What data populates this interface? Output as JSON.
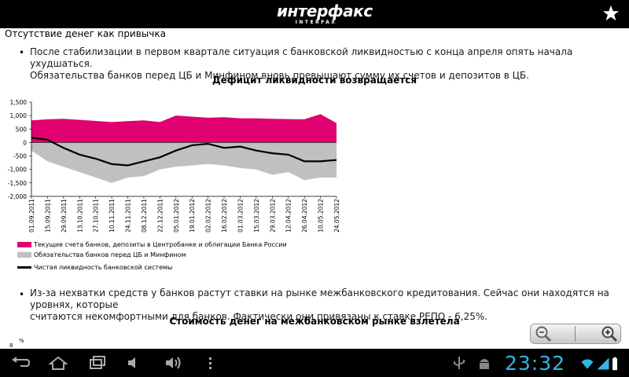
{
  "app": {
    "logo_text": "интерфакс",
    "logo_sub": "INTERFAX"
  },
  "article": {
    "section_title": "Отсутствие денег как привычка",
    "para1_line1": "После стабилизации в первом квартале ситуация с банковской ликвидностью с конца апреля опять начала ухудшаться.",
    "para1_line2": "Обязательства банков перед ЦБ и Минфином вновь превышают сумму их счетов и депозитов в ЦБ.",
    "chart1_title": "Дефицит ликвидности возвращается",
    "para2_line1": "Из-за нехватки средств у банков растут ставки на рынке межбанковского кредитования. Сейчас они находятся на уровнях, которые",
    "para2_line2": "считаются некомфортными для банков. Фактически они привязаны к ставке РЕПО - 6,25%.",
    "chart2_title": "Стоимость денег на межбанковском рынке взлетела",
    "chart2_ytick_top": "8",
    "chart2_yunit": "%"
  },
  "chart_data": {
    "type": "area",
    "yticks": [
      "1,500",
      "1,000",
      "500",
      "0",
      "-500",
      "-1,000",
      "-1,500",
      "-2,000"
    ],
    "ylim": [
      -2000,
      1500
    ],
    "categories": [
      "01.09.2011",
      "15.09.2011",
      "29.09.2011",
      "13.10.2011",
      "27.10.2011",
      "10.11.2011",
      "24.11.2011",
      "08.12.2011",
      "22.12.2011",
      "05.01.2012",
      "19.01.2012",
      "02.02.2012",
      "16.02.2012",
      "01.03.2012",
      "15.03.2012",
      "29.03.2012",
      "12.04.2012",
      "26.04.2012",
      "10.05.2012",
      "24.05.2012"
    ],
    "series": [
      {
        "name": "Текущие счета банков, депозиты в Центробанке и облигации Банка России",
        "color": "#e0006f",
        "values": [
          820,
          860,
          880,
          840,
          800,
          760,
          790,
          820,
          760,
          1000,
          960,
          920,
          940,
          900,
          900,
          880,
          870,
          860,
          1050,
          720
        ]
      },
      {
        "name": "Обязательства банков перед ЦБ и Минфином",
        "color": "#c0c0c0",
        "values": [
          -300,
          -700,
          -900,
          -1100,
          -1300,
          -1500,
          -1300,
          -1250,
          -1000,
          -900,
          -850,
          -800,
          -850,
          -950,
          -1000,
          -1200,
          -1100,
          -1400,
          -1300,
          -1300
        ]
      },
      {
        "name": "Чистая ликвидность банковской системы",
        "color": "#000000",
        "values": [
          180,
          100,
          -200,
          -450,
          -600,
          -800,
          -850,
          -700,
          -550,
          -300,
          -100,
          -50,
          -200,
          -150,
          -300,
          -400,
          -450,
          -700,
          -700,
          -650
        ]
      }
    ]
  },
  "navbar": {
    "clock": "23:32"
  },
  "icons": {
    "star": "star-icon",
    "zoom_out": "zoom-out-icon",
    "zoom_in": "zoom-in-icon"
  }
}
